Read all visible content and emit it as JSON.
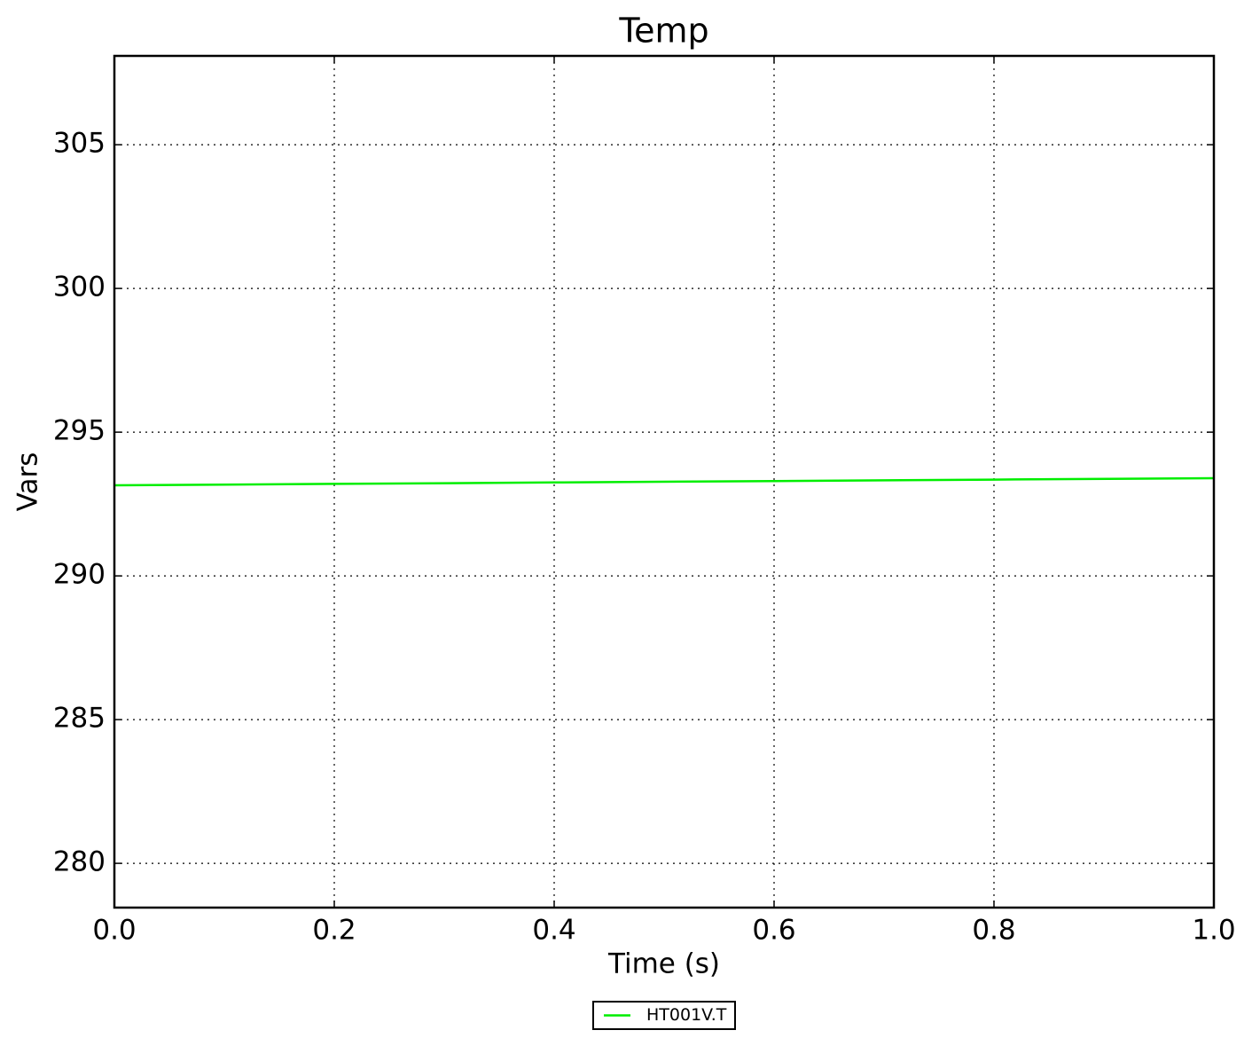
{
  "chart_data": {
    "type": "line",
    "title": "Temp",
    "x_label": "Time (s)",
    "y_label": "Vars",
    "x": [
      0,
      0.2,
      0.4,
      0.6,
      0.8,
      1.0
    ],
    "series": [
      {
        "name": "HT001V.T",
        "color": "#00ee00",
        "values": [
          293.15,
          293.2,
          293.25,
          293.3,
          293.35,
          293.4
        ]
      }
    ],
    "xlim": [
      0,
      1.0
    ],
    "xticks": [
      {
        "value": 0,
        "label": "0.0"
      },
      0.2,
      0.4,
      0.6,
      0.8,
      {
        "value": 1.0,
        "label": "1.0"
      }
    ],
    "ylim": [
      278.46,
      308.09
    ],
    "yticks": [
      280,
      285,
      290,
      295,
      300,
      305
    ],
    "grid": true,
    "legend": "bottom"
  }
}
